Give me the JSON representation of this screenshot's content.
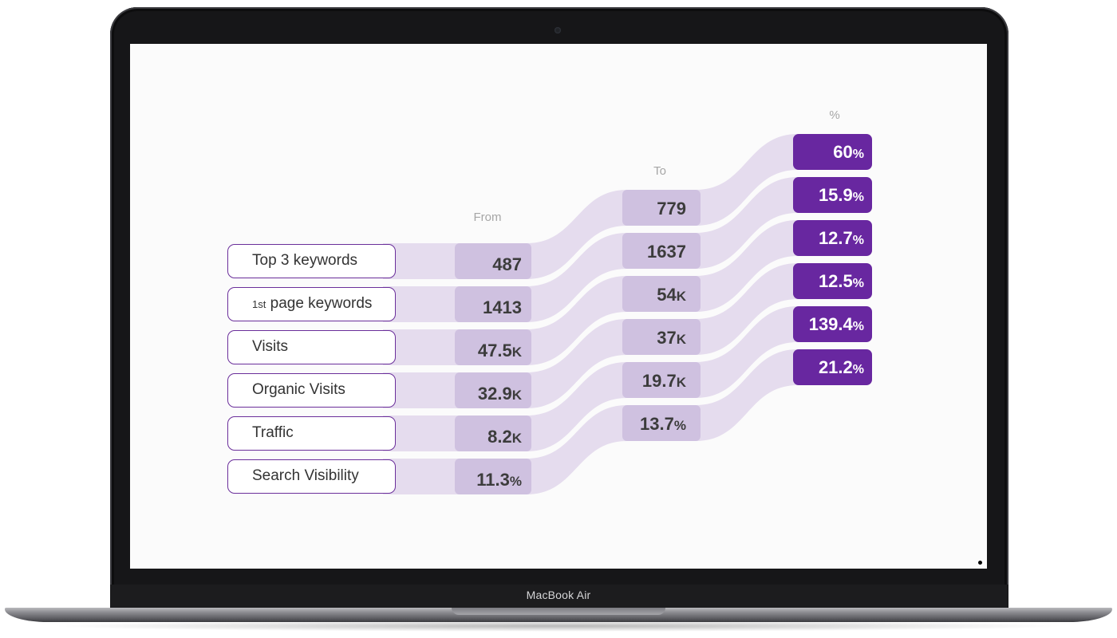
{
  "device": {
    "brand_label": "MacBook Air"
  },
  "headers": {
    "from": "From",
    "to": "To",
    "percent": "%"
  },
  "rows": [
    {
      "label": "Top 3 keywords",
      "label_sup": "",
      "from": "487",
      "from_unit": "",
      "to": "779",
      "to_unit": "",
      "change": "60",
      "change_unit": "%"
    },
    {
      "label": " page keywords",
      "label_sup": "1st",
      "from": "1413",
      "from_unit": "",
      "to": "1637",
      "to_unit": "",
      "change": "15.9",
      "change_unit": "%"
    },
    {
      "label": "Visits",
      "label_sup": "",
      "from": "47.5",
      "from_unit": "K",
      "to": "54",
      "to_unit": "K",
      "change": "12.7",
      "change_unit": "%"
    },
    {
      "label": "Organic Visits",
      "label_sup": "",
      "from": "32.9",
      "from_unit": "K",
      "to": "37",
      "to_unit": "K",
      "change": "12.5",
      "change_unit": "%"
    },
    {
      "label": "Traffic",
      "label_sup": "",
      "from": "8.2",
      "from_unit": "K",
      "to": "19.7",
      "to_unit": "K",
      "change": "139.4",
      "change_unit": "%"
    },
    {
      "label": "Search Visibility",
      "label_sup": "",
      "from": "11.3",
      "from_unit": "%",
      "to": "13.7",
      "to_unit": "%",
      "change": "21.2",
      "change_unit": "%"
    }
  ],
  "colors": {
    "ribbon": "#e5dcee",
    "from_to_box": "#cfc1e0",
    "percent_box": "#6827a0",
    "label_border": "#6a2e9a"
  }
}
